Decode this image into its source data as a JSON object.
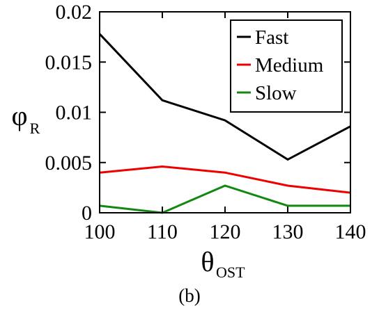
{
  "caption": "(b)",
  "chart_data": {
    "type": "line",
    "x": [
      100,
      110,
      120,
      130,
      140
    ],
    "xlim": [
      100,
      140
    ],
    "ylim": [
      0,
      0.02
    ],
    "xticks": [
      100,
      110,
      120,
      130,
      140
    ],
    "yticks": [
      0,
      0.005,
      0.01,
      0.015,
      0.02
    ],
    "xtick_labels": [
      "100",
      "110",
      "120",
      "130",
      "140"
    ],
    "ytick_labels": [
      "0",
      "0.005",
      "0.01",
      "0.015",
      "0.02"
    ],
    "xlabel": {
      "main": "θ",
      "sub": "OST"
    },
    "ylabel": {
      "main": "φ",
      "sub": "R"
    },
    "grid": false,
    "legend_position": "top-right",
    "series": [
      {
        "name": "Fast",
        "color": "#000000",
        "values": [
          0.0178,
          0.0112,
          0.0092,
          0.0053,
          0.0086
        ]
      },
      {
        "name": "Medium",
        "color": "#ee0000",
        "values": [
          0.004,
          0.0046,
          0.004,
          0.0027,
          0.002
        ]
      },
      {
        "name": "Slow",
        "color": "#118811",
        "values": [
          0.0007,
          0.0,
          0.0027,
          0.0007,
          0.0007
        ]
      }
    ]
  }
}
